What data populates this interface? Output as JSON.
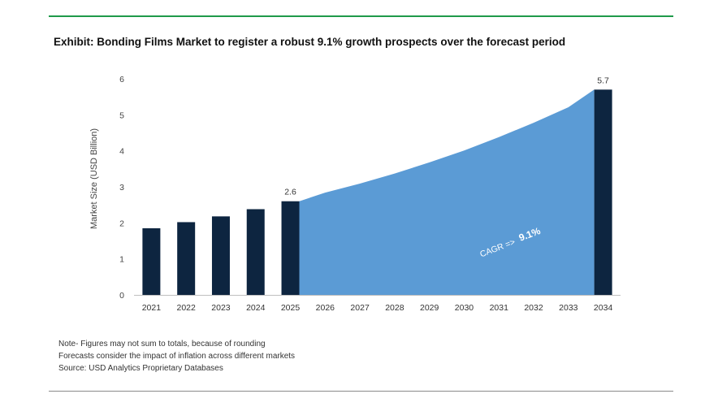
{
  "title": "Exhibit: Bonding Films Market to register a robust 9.1% growth prospects over the forecast period",
  "notes": [
    "Note- Figures may not sum to totals, because of rounding",
    "Forecasts consider the impact of inflation across different markets",
    "Source: USD Analytics Proprietary Databases"
  ],
  "colors": {
    "bar": "#0d2540",
    "area": "#5b9bd5",
    "top_rule": "#1f9a4a"
  },
  "chart_data": {
    "type": "bar",
    "title": "Exhibit: Bonding Films Market to register a robust 9.1% growth prospects over the forecast period",
    "xlabel": "",
    "ylabel": "Market Size (USD Billion)",
    "ylim": [
      0,
      6
    ],
    "yticks": [
      0,
      1,
      2,
      3,
      4,
      5,
      6
    ],
    "categories": [
      "2021",
      "2022",
      "2023",
      "2024",
      "2025",
      "2026",
      "2027",
      "2028",
      "2029",
      "2030",
      "2031",
      "2032",
      "2033",
      "2034"
    ],
    "bars": [
      {
        "year": "2021",
        "value": 1.85
      },
      {
        "year": "2022",
        "value": 2.02
      },
      {
        "year": "2023",
        "value": 2.18
      },
      {
        "year": "2024",
        "value": 2.38
      },
      {
        "year": "2025",
        "value": 2.6
      },
      {
        "year": "2034",
        "value": 5.7
      }
    ],
    "area": {
      "years": [
        "2025",
        "2026",
        "2027",
        "2028",
        "2029",
        "2030",
        "2031",
        "2032",
        "2033",
        "2034"
      ],
      "values": [
        2.6,
        2.84,
        3.09,
        3.37,
        3.68,
        4.01,
        4.38,
        4.78,
        5.21,
        5.7
      ]
    },
    "data_labels": [
      {
        "year": "2025",
        "text": "2.6"
      },
      {
        "year": "2034",
        "text": "5.7"
      }
    ],
    "annotation": {
      "cagr_label": "CAGR =>",
      "cagr_value": "9.1%"
    },
    "grid": false,
    "legend": "none"
  }
}
